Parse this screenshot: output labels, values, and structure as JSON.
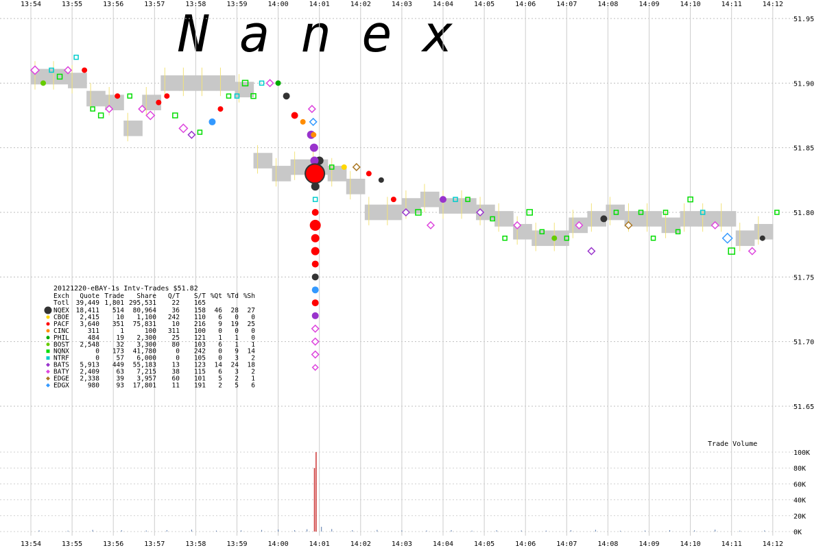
{
  "watermark": "N a n e x",
  "volume_label": "Trade Volume",
  "chart_data": {
    "type": "scatter",
    "title": "20121220-eBAY-1s Intv-Trades $51.82",
    "x_ticks": [
      "13:54",
      "13:55",
      "13:56",
      "13:57",
      "13:58",
      "13:59",
      "14:00",
      "14:01",
      "14:02",
      "14:03",
      "14:04",
      "14:05",
      "14:06",
      "14:07",
      "14:08",
      "14:09",
      "14:10",
      "14:11",
      "14:12"
    ],
    "y_ticks": [
      "51.95",
      "51.90",
      "51.85",
      "51.80",
      "51.75",
      "51.70",
      "51.65"
    ],
    "ylim": [
      51.62,
      51.97
    ],
    "volume_ticks": [
      "100K",
      "80K",
      "60K",
      "40K",
      "20K",
      "0K"
    ],
    "volume_ylim": [
      0,
      100000
    ],
    "legend": {
      "headers": [
        "Exch",
        "Quote",
        "Trade",
        "Share",
        "Q/T",
        "S/T",
        "%Qt",
        "%Td",
        "%Sh"
      ],
      "total": {
        "label": "Totl",
        "quote": "39,449",
        "trade": "1,801",
        "share": "295,531",
        "qt": "22",
        "st": "165",
        "pq": "",
        "pt": "",
        "ps": ""
      },
      "rows": [
        {
          "exch": "NQEX",
          "quote": "18,411",
          "trade": "514",
          "share": "80,964",
          "qt": "36",
          "st": "158",
          "pq": "46",
          "pt": "28",
          "ps": "27",
          "color": "#333333",
          "marker": "circle-big"
        },
        {
          "exch": "CBOE",
          "quote": "2,415",
          "trade": "10",
          "share": "1,100",
          "qt": "242",
          "st": "110",
          "pq": "6",
          "pt": "0",
          "ps": "0",
          "color": "#ffd700",
          "marker": "circle"
        },
        {
          "exch": "PACF",
          "quote": "3,640",
          "trade": "351",
          "share": "75,831",
          "qt": "10",
          "st": "216",
          "pq": "9",
          "pt": "19",
          "ps": "25",
          "color": "#ff0000",
          "marker": "circle"
        },
        {
          "exch": "CINC",
          "quote": "311",
          "trade": "1",
          "share": "100",
          "qt": "311",
          "st": "100",
          "pq": "0",
          "pt": "0",
          "ps": "0",
          "color": "#ff8c00",
          "marker": "circle"
        },
        {
          "exch": "PHIL",
          "quote": "484",
          "trade": "19",
          "share": "2,300",
          "qt": "25",
          "st": "121",
          "pq": "1",
          "pt": "1",
          "ps": "0",
          "color": "#00aa00",
          "marker": "circle"
        },
        {
          "exch": "BOST",
          "quote": "2,548",
          "trade": "32",
          "share": "3,300",
          "qt": "80",
          "st": "103",
          "pq": "6",
          "pt": "1",
          "ps": "1",
          "color": "#66cc00",
          "marker": "circle"
        },
        {
          "exch": "NQNX",
          "quote": "0",
          "trade": "173",
          "share": "41,780",
          "qt": "0",
          "st": "242",
          "pq": "0",
          "pt": "9",
          "ps": "14",
          "color": "#00dd00",
          "marker": "square"
        },
        {
          "exch": "NTRF",
          "quote": "0",
          "trade": "57",
          "share": "6,000",
          "qt": "0",
          "st": "105",
          "pq": "0",
          "pt": "3",
          "ps": "2",
          "color": "#00cccc",
          "marker": "square"
        },
        {
          "exch": "BATS",
          "quote": "5,913",
          "trade": "449",
          "share": "55,183",
          "qt": "13",
          "st": "123",
          "pq": "14",
          "pt": "24",
          "ps": "18",
          "color": "#9933cc",
          "marker": "diamond"
        },
        {
          "exch": "BATY",
          "quote": "2,409",
          "trade": "63",
          "share": "7,215",
          "qt": "38",
          "st": "115",
          "pq": "6",
          "pt": "3",
          "ps": "2",
          "color": "#dd44dd",
          "marker": "diamond"
        },
        {
          "exch": "EDGE",
          "quote": "2,338",
          "trade": "39",
          "share": "3,957",
          "qt": "60",
          "st": "101",
          "pq": "5",
          "pt": "2",
          "ps": "1",
          "color": "#aa7722",
          "marker": "diamond"
        },
        {
          "exch": "EDGX",
          "quote": "980",
          "trade": "93",
          "share": "17,801",
          "qt": "11",
          "st": "191",
          "pq": "2",
          "pt": "5",
          "ps": "6",
          "color": "#3399ff",
          "marker": "diamond"
        }
      ]
    },
    "nbbo_band": [
      [
        0,
        51.905
      ],
      [
        1,
        51.905
      ],
      [
        2,
        51.902
      ],
      [
        3,
        51.888
      ],
      [
        4,
        51.885
      ],
      [
        5,
        51.865
      ],
      [
        6,
        51.885
      ],
      [
        7,
        51.9
      ],
      [
        8,
        51.9
      ],
      [
        9,
        51.9
      ],
      [
        10,
        51.9
      ],
      [
        11,
        51.895
      ],
      [
        12,
        51.84
      ],
      [
        13,
        51.83
      ],
      [
        14,
        51.835
      ],
      [
        15,
        51.835
      ],
      [
        16,
        51.83
      ],
      [
        17,
        51.82
      ],
      [
        18,
        51.8
      ],
      [
        19,
        51.8
      ],
      [
        20,
        51.805
      ],
      [
        21,
        51.81
      ],
      [
        22,
        51.805
      ],
      [
        23,
        51.805
      ],
      [
        24,
        51.8
      ],
      [
        25,
        51.795
      ],
      [
        26,
        51.785
      ],
      [
        27,
        51.78
      ],
      [
        28,
        51.78
      ],
      [
        29,
        51.79
      ],
      [
        30,
        51.795
      ],
      [
        31,
        51.8
      ],
      [
        32,
        51.795
      ],
      [
        33,
        51.795
      ],
      [
        34,
        51.79
      ],
      [
        35,
        51.795
      ],
      [
        36,
        51.795
      ],
      [
        37,
        51.795
      ],
      [
        38,
        51.78
      ],
      [
        39,
        51.785
      ]
    ],
    "trades": [
      {
        "t": 0.1,
        "p": 51.91,
        "m": "diamond",
        "c": "#dd44dd",
        "s": 6
      },
      {
        "t": 0.3,
        "p": 51.9,
        "m": "circle",
        "c": "#66cc00",
        "s": 4
      },
      {
        "t": 0.5,
        "p": 51.91,
        "m": "square",
        "c": "#00cccc",
        "s": 6
      },
      {
        "t": 0.7,
        "p": 51.905,
        "m": "square",
        "c": "#00dd00",
        "s": 7
      },
      {
        "t": 0.9,
        "p": 51.91,
        "m": "diamond",
        "c": "#dd44dd",
        "s": 5
      },
      {
        "t": 1.1,
        "p": 51.92,
        "m": "square",
        "c": "#00cccc",
        "s": 6
      },
      {
        "t": 1.3,
        "p": 51.91,
        "m": "circle",
        "c": "#ff0000",
        "s": 4
      },
      {
        "t": 1.5,
        "p": 51.88,
        "m": "square",
        "c": "#00dd00",
        "s": 6
      },
      {
        "t": 1.7,
        "p": 51.875,
        "m": "square",
        "c": "#00dd00",
        "s": 7
      },
      {
        "t": 1.9,
        "p": 51.88,
        "m": "diamond",
        "c": "#dd44dd",
        "s": 5
      },
      {
        "t": 2.1,
        "p": 51.89,
        "m": "circle",
        "c": "#ff0000",
        "s": 4
      },
      {
        "t": 2.4,
        "p": 51.89,
        "m": "square",
        "c": "#00dd00",
        "s": 6
      },
      {
        "t": 2.7,
        "p": 51.88,
        "m": "diamond",
        "c": "#dd44dd",
        "s": 5
      },
      {
        "t": 2.9,
        "p": 51.875,
        "m": "diamond",
        "c": "#dd44dd",
        "s": 6
      },
      {
        "t": 3.1,
        "p": 51.885,
        "m": "circle",
        "c": "#ff0000",
        "s": 4
      },
      {
        "t": 3.3,
        "p": 51.89,
        "m": "circle",
        "c": "#ff0000",
        "s": 4
      },
      {
        "t": 3.5,
        "p": 51.875,
        "m": "square",
        "c": "#00dd00",
        "s": 7
      },
      {
        "t": 3.7,
        "p": 51.865,
        "m": "diamond",
        "c": "#dd44dd",
        "s": 6
      },
      {
        "t": 3.9,
        "p": 51.86,
        "m": "diamond",
        "c": "#9933cc",
        "s": 5
      },
      {
        "t": 4.1,
        "p": 51.862,
        "m": "square",
        "c": "#00dd00",
        "s": 6
      },
      {
        "t": 4.4,
        "p": 51.87,
        "m": "circle",
        "c": "#3399ff",
        "s": 5
      },
      {
        "t": 4.6,
        "p": 51.88,
        "m": "circle",
        "c": "#ff0000",
        "s": 4
      },
      {
        "t": 4.8,
        "p": 51.89,
        "m": "square",
        "c": "#00dd00",
        "s": 6
      },
      {
        "t": 5.0,
        "p": 51.89,
        "m": "square",
        "c": "#00cccc",
        "s": 6
      },
      {
        "t": 5.2,
        "p": 51.9,
        "m": "square",
        "c": "#00dd00",
        "s": 8
      },
      {
        "t": 5.4,
        "p": 51.89,
        "m": "square",
        "c": "#00dd00",
        "s": 7
      },
      {
        "t": 5.6,
        "p": 51.9,
        "m": "square",
        "c": "#00cccc",
        "s": 6
      },
      {
        "t": 5.8,
        "p": 51.9,
        "m": "diamond",
        "c": "#dd44dd",
        "s": 5
      },
      {
        "t": 6.0,
        "p": 51.9,
        "m": "circle",
        "c": "#00aa00",
        "s": 4
      },
      {
        "t": 6.2,
        "p": 51.89,
        "m": "circle",
        "c": "#333333",
        "s": 5
      },
      {
        "t": 6.4,
        "p": 51.875,
        "m": "circle",
        "c": "#ff0000",
        "s": 5
      },
      {
        "t": 6.6,
        "p": 51.87,
        "m": "circle",
        "c": "#ff8c00",
        "s": 4
      },
      {
        "t": 6.8,
        "p": 51.86,
        "m": "circle",
        "c": "#9933cc",
        "s": 6
      },
      {
        "t": 7.0,
        "p": 51.84,
        "m": "circle",
        "c": "#333333",
        "s": 6
      },
      {
        "t": 7.3,
        "p": 51.835,
        "m": "square",
        "c": "#00dd00",
        "s": 6
      },
      {
        "t": 7.6,
        "p": 51.835,
        "m": "circle",
        "c": "#ffd700",
        "s": 4
      },
      {
        "t": 7.9,
        "p": 51.835,
        "m": "diamond",
        "c": "#aa7722",
        "s": 5
      },
      {
        "t": 8.2,
        "p": 51.83,
        "m": "circle",
        "c": "#ff0000",
        "s": 4
      },
      {
        "t": 8.5,
        "p": 51.825,
        "m": "circle",
        "c": "#333333",
        "s": 4
      },
      {
        "t": 8.8,
        "p": 51.81,
        "m": "circle",
        "c": "#ff0000",
        "s": 4
      },
      {
        "t": 9.1,
        "p": 51.8,
        "m": "diamond",
        "c": "#9933cc",
        "s": 5
      },
      {
        "t": 9.4,
        "p": 51.8,
        "m": "square",
        "c": "#00dd00",
        "s": 8
      },
      {
        "t": 9.7,
        "p": 51.79,
        "m": "diamond",
        "c": "#dd44dd",
        "s": 5
      },
      {
        "t": 10.0,
        "p": 51.81,
        "m": "circle",
        "c": "#9933cc",
        "s": 5
      },
      {
        "t": 10.3,
        "p": 51.81,
        "m": "square",
        "c": "#00cccc",
        "s": 6
      },
      {
        "t": 10.6,
        "p": 51.81,
        "m": "square",
        "c": "#00dd00",
        "s": 6
      },
      {
        "t": 10.9,
        "p": 51.8,
        "m": "diamond",
        "c": "#9933cc",
        "s": 5
      },
      {
        "t": 11.2,
        "p": 51.795,
        "m": "square",
        "c": "#00dd00",
        "s": 6
      },
      {
        "t": 11.5,
        "p": 51.78,
        "m": "square",
        "c": "#00dd00",
        "s": 6
      },
      {
        "t": 11.8,
        "p": 51.79,
        "m": "diamond",
        "c": "#dd44dd",
        "s": 5
      },
      {
        "t": 12.1,
        "p": 51.8,
        "m": "square",
        "c": "#00dd00",
        "s": 8
      },
      {
        "t": 12.4,
        "p": 51.785,
        "m": "square",
        "c": "#00dd00",
        "s": 6
      },
      {
        "t": 12.7,
        "p": 51.78,
        "m": "circle",
        "c": "#66cc00",
        "s": 4
      },
      {
        "t": 13.0,
        "p": 51.78,
        "m": "square",
        "c": "#00dd00",
        "s": 6
      },
      {
        "t": 13.3,
        "p": 51.79,
        "m": "diamond",
        "c": "#dd44dd",
        "s": 5
      },
      {
        "t": 13.6,
        "p": 51.77,
        "m": "diamond",
        "c": "#9933cc",
        "s": 5
      },
      {
        "t": 13.9,
        "p": 51.795,
        "m": "circle",
        "c": "#333333",
        "s": 5
      },
      {
        "t": 14.2,
        "p": 51.8,
        "m": "square",
        "c": "#00dd00",
        "s": 6
      },
      {
        "t": 14.5,
        "p": 51.79,
        "m": "diamond",
        "c": "#aa7722",
        "s": 5
      },
      {
        "t": 14.8,
        "p": 51.8,
        "m": "square",
        "c": "#00dd00",
        "s": 6
      },
      {
        "t": 15.1,
        "p": 51.78,
        "m": "square",
        "c": "#00dd00",
        "s": 6
      },
      {
        "t": 15.4,
        "p": 51.8,
        "m": "square",
        "c": "#00dd00",
        "s": 6
      },
      {
        "t": 15.7,
        "p": 51.785,
        "m": "square",
        "c": "#00dd00",
        "s": 6
      },
      {
        "t": 16.0,
        "p": 51.81,
        "m": "square",
        "c": "#00dd00",
        "s": 7
      },
      {
        "t": 16.3,
        "p": 51.8,
        "m": "square",
        "c": "#00cccc",
        "s": 6
      },
      {
        "t": 16.6,
        "p": 51.79,
        "m": "diamond",
        "c": "#dd44dd",
        "s": 5
      },
      {
        "t": 16.9,
        "p": 51.78,
        "m": "diamond",
        "c": "#3399ff",
        "s": 7
      },
      {
        "t": 17.0,
        "p": 51.77,
        "m": "square",
        "c": "#00dd00",
        "s": 9
      },
      {
        "t": 17.5,
        "p": 51.77,
        "m": "diamond",
        "c": "#dd44dd",
        "s": 5
      },
      {
        "t": 17.75,
        "p": 51.78,
        "m": "circle",
        "c": "#333333",
        "s": 4
      },
      {
        "t": 18.1,
        "p": 51.8,
        "m": "square",
        "c": "#00dd00",
        "s": 6
      }
    ],
    "flash_trades": [
      {
        "t": 6.82,
        "p": 51.88,
        "m": "diamond",
        "c": "#dd44dd",
        "s": 5
      },
      {
        "t": 6.85,
        "p": 51.87,
        "m": "diamond",
        "c": "#3399ff",
        "s": 5
      },
      {
        "t": 6.86,
        "p": 51.86,
        "m": "circle",
        "c": "#ff8c00",
        "s": 4
      },
      {
        "t": 6.87,
        "p": 51.85,
        "m": "circle",
        "c": "#9933cc",
        "s": 6
      },
      {
        "t": 6.88,
        "p": 51.84,
        "m": "circle",
        "c": "#9933cc",
        "s": 6
      },
      {
        "t": 6.89,
        "p": 51.83,
        "m": "circle",
        "c": "#ff0000",
        "s": 14
      },
      {
        "t": 6.9,
        "p": 51.82,
        "m": "circle",
        "c": "#333333",
        "s": 6
      },
      {
        "t": 6.9,
        "p": 51.81,
        "m": "square",
        "c": "#00cccc",
        "s": 6
      },
      {
        "t": 6.9,
        "p": 51.8,
        "m": "circle",
        "c": "#ff0000",
        "s": 5
      },
      {
        "t": 6.9,
        "p": 51.79,
        "m": "circle",
        "c": "#ff0000",
        "s": 8
      },
      {
        "t": 6.9,
        "p": 51.78,
        "m": "circle",
        "c": "#ff0000",
        "s": 6
      },
      {
        "t": 6.9,
        "p": 51.77,
        "m": "circle",
        "c": "#ff0000",
        "s": 6
      },
      {
        "t": 6.9,
        "p": 51.76,
        "m": "circle",
        "c": "#ff0000",
        "s": 5
      },
      {
        "t": 6.9,
        "p": 51.75,
        "m": "circle",
        "c": "#333333",
        "s": 5
      },
      {
        "t": 6.9,
        "p": 51.74,
        "m": "circle",
        "c": "#3399ff",
        "s": 5
      },
      {
        "t": 6.9,
        "p": 51.73,
        "m": "circle",
        "c": "#ff0000",
        "s": 5
      },
      {
        "t": 6.9,
        "p": 51.72,
        "m": "circle",
        "c": "#9933cc",
        "s": 5
      },
      {
        "t": 6.9,
        "p": 51.71,
        "m": "diamond",
        "c": "#dd44dd",
        "s": 5
      },
      {
        "t": 6.9,
        "p": 51.7,
        "m": "diamond",
        "c": "#dd44dd",
        "s": 5
      },
      {
        "t": 6.9,
        "p": 51.69,
        "m": "diamond",
        "c": "#dd44dd",
        "s": 5
      },
      {
        "t": 6.9,
        "p": 51.68,
        "m": "diamond",
        "c": "#dd44dd",
        "s": 4
      }
    ],
    "volume_bars": [
      {
        "t": 0.2,
        "v": 1500
      },
      {
        "t": 0.9,
        "v": 1100
      },
      {
        "t": 1.5,
        "v": 2100
      },
      {
        "t": 2.2,
        "v": 1700
      },
      {
        "t": 2.8,
        "v": 1300
      },
      {
        "t": 3.3,
        "v": 1800
      },
      {
        "t": 3.9,
        "v": 2400
      },
      {
        "t": 4.5,
        "v": 1200
      },
      {
        "t": 5.1,
        "v": 1500
      },
      {
        "t": 5.6,
        "v": 2000
      },
      {
        "t": 6.0,
        "v": 2600
      },
      {
        "t": 6.4,
        "v": 1700
      },
      {
        "t": 6.7,
        "v": 2900
      },
      {
        "t": 6.88,
        "v": 80000
      },
      {
        "t": 6.92,
        "v": 100000
      },
      {
        "t": 7.05,
        "v": 6000
      },
      {
        "t": 7.3,
        "v": 3200
      },
      {
        "t": 7.8,
        "v": 1700
      },
      {
        "t": 8.4,
        "v": 2100
      },
      {
        "t": 9.0,
        "v": 1500
      },
      {
        "t": 9.6,
        "v": 1300
      },
      {
        "t": 10.2,
        "v": 1800
      },
      {
        "t": 10.7,
        "v": 1100
      },
      {
        "t": 11.3,
        "v": 1600
      },
      {
        "t": 11.9,
        "v": 1400
      },
      {
        "t": 12.5,
        "v": 1200
      },
      {
        "t": 13.1,
        "v": 1700
      },
      {
        "t": 13.7,
        "v": 2200
      },
      {
        "t": 14.3,
        "v": 1000
      },
      {
        "t": 14.9,
        "v": 1300
      },
      {
        "t": 15.5,
        "v": 1800
      },
      {
        "t": 16.1,
        "v": 1500
      },
      {
        "t": 16.6,
        "v": 2400
      },
      {
        "t": 17.2,
        "v": 1100
      },
      {
        "t": 17.8,
        "v": 1400
      }
    ]
  }
}
